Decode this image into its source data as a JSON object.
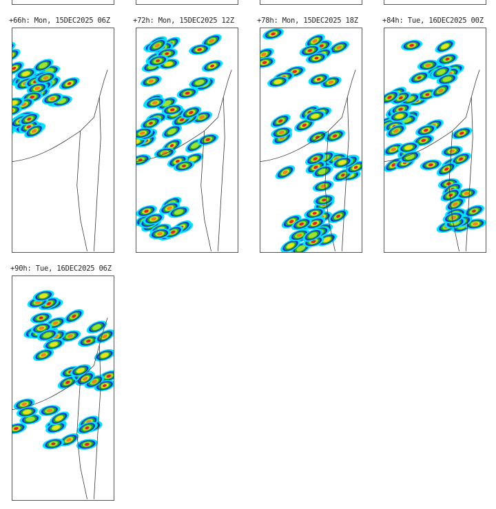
{
  "colors": {
    "light": "#00e5ff",
    "blue": "#1030e0",
    "green": "#10b020",
    "lime": "#a0e030",
    "yellow": "#f0e020",
    "orange": "#f08020",
    "red": "#e02020",
    "magenta": "#e040c0",
    "coast": "#333333"
  },
  "panels": [
    {
      "label": "+66h: Mon, 15DEC2025 06Z"
    },
    {
      "label": "+72h: Mon, 15DEC2025 12Z"
    },
    {
      "label": "+78h: Mon, 15DEC2025 18Z"
    },
    {
      "label": "+84h: Tue, 16DEC2025 00Z"
    },
    {
      "label": "+90h: Tue, 16DEC2025 06Z"
    }
  ]
}
